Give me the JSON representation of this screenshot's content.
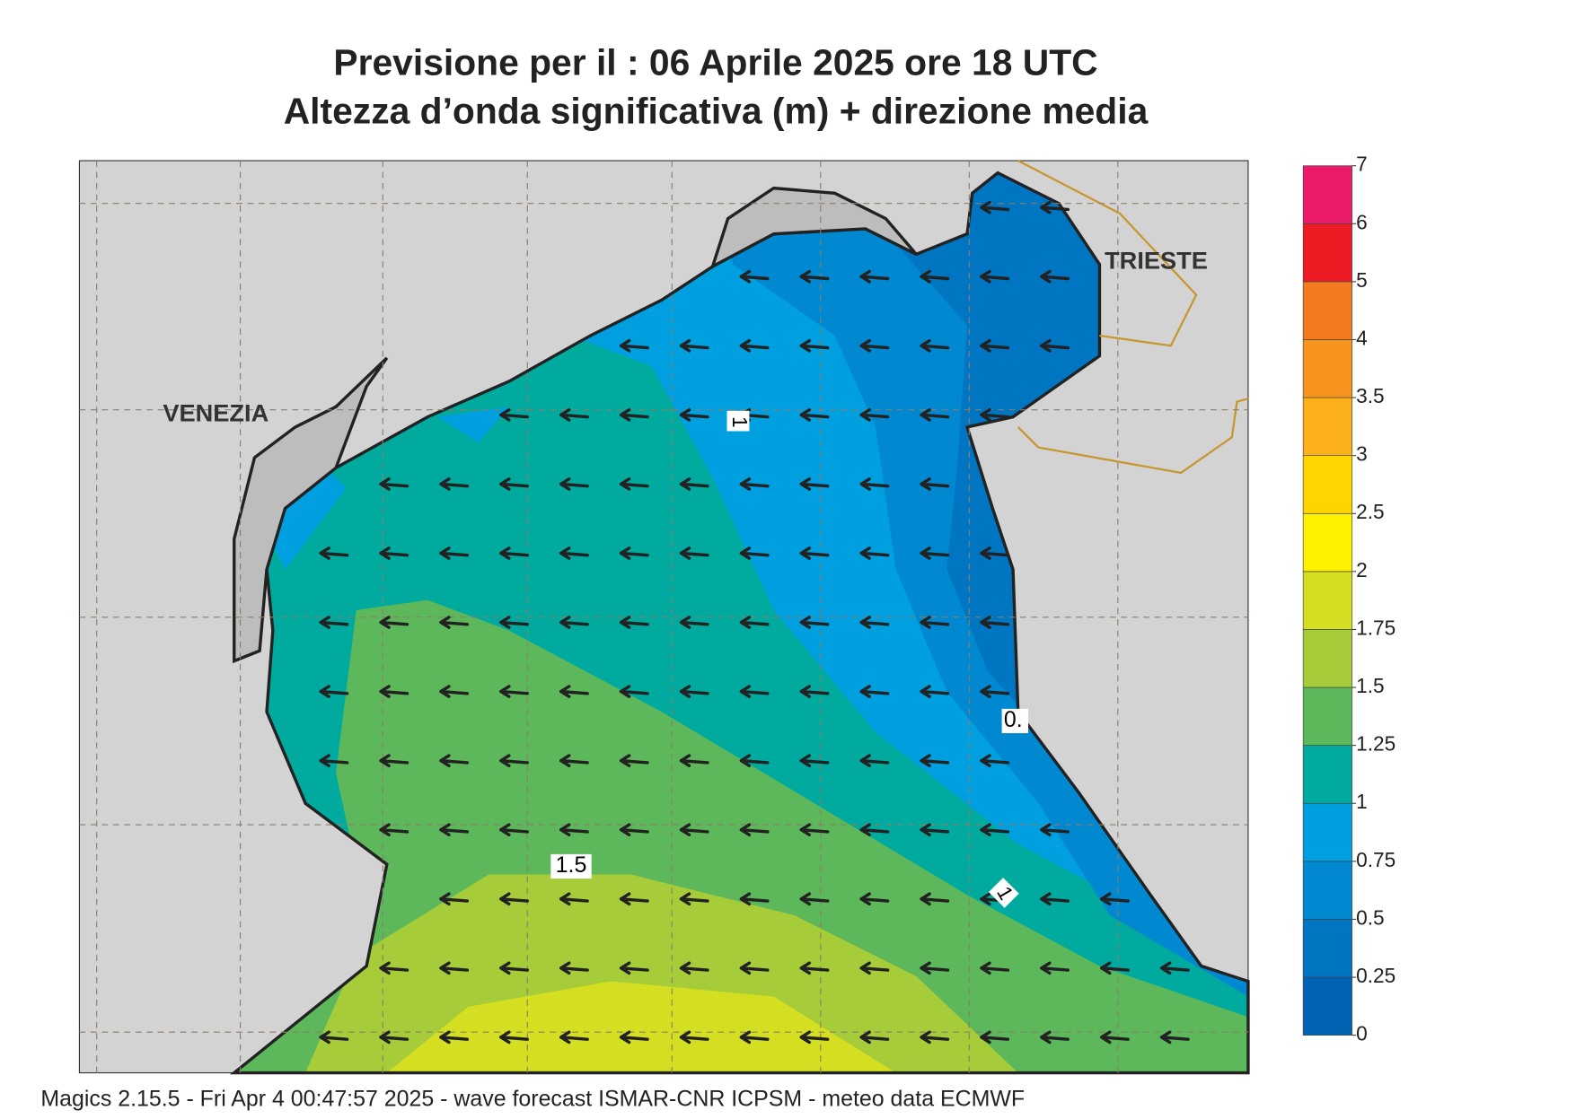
{
  "header": {
    "title": "Previsione per il  :  06   Aprile  2025   ore 18 UTC",
    "subtitle": "Altezza d’onda significativa (m) + direzione media"
  },
  "map": {
    "places": [
      "VENEZIA",
      "TRIESTE"
    ],
    "contour_labels": [
      "1",
      "1.5",
      "0.",
      "1"
    ]
  },
  "legend": {
    "ticks": [
      0,
      0.25,
      0.5,
      0.75,
      1,
      1.25,
      1.5,
      1.75,
      2,
      2.5,
      3,
      3.5,
      4,
      5,
      6,
      7
    ],
    "colors": [
      "#0063b4",
      "#0075c2",
      "#0088d0",
      "#009fdf",
      "#00aa9f",
      "#5cb85a",
      "#a6cc3a",
      "#d5df21",
      "#fff200",
      "#ffd500",
      "#fbb01a",
      "#f7941d",
      "#f47a20",
      "#ed1c24",
      "#ec1a6a"
    ]
  },
  "footer": "Magics 2.15.5 - Fri Apr  4 00:47:57 2025 - wave forecast  ISMAR-CNR  ICPSM - meteo data    ECMWF"
}
